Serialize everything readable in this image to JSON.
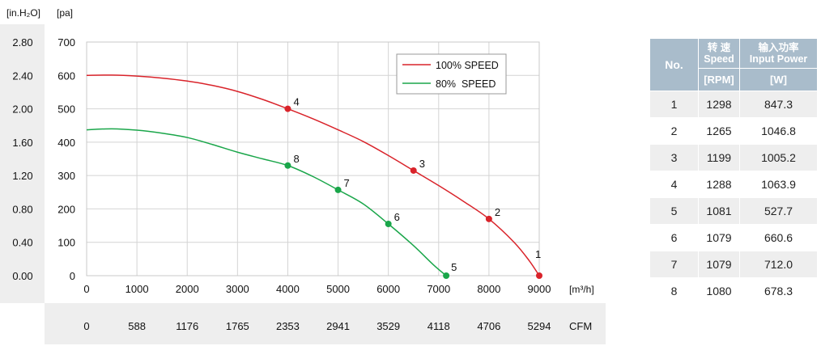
{
  "chart_data": {
    "type": "line",
    "x_unit": "[m³/h]",
    "y_unit": "[pa]",
    "y2_unit": "[in.H₂O]",
    "bottom_unit": "CFM",
    "x_ticks": [
      0,
      1000,
      2000,
      3000,
      4000,
      5000,
      6000,
      7000,
      8000,
      9000
    ],
    "y_ticks": [
      0,
      100,
      200,
      300,
      400,
      500,
      600,
      700
    ],
    "y2_ticks": [
      "0.00",
      "0.40",
      "0.80",
      "1.20",
      "1.60",
      "2.00",
      "2.40",
      "2.80"
    ],
    "cfm_ticks": [
      "0",
      "588",
      "1176",
      "1765",
      "2353",
      "2941",
      "3529",
      "4118",
      "4706",
      "5294"
    ],
    "xlim": [
      0,
      9000
    ],
    "ylim": [
      0,
      700
    ],
    "grid": true,
    "legend_position": "top-right",
    "series": [
      {
        "name": "100% SPEED",
        "color": "#d9232a",
        "curve": [
          [
            0,
            600
          ],
          [
            500,
            601
          ],
          [
            1000,
            598
          ],
          [
            1500,
            592
          ],
          [
            2000,
            583
          ],
          [
            2500,
            570
          ],
          [
            3000,
            552
          ],
          [
            3500,
            528
          ],
          [
            4000,
            500
          ],
          [
            4500,
            470
          ],
          [
            5000,
            437
          ],
          [
            5500,
            402
          ],
          [
            6000,
            360
          ],
          [
            6500,
            315
          ],
          [
            7000,
            270
          ],
          [
            7500,
            222
          ],
          [
            8000,
            170
          ],
          [
            8500,
            100
          ],
          [
            8800,
            45
          ],
          [
            9000,
            0
          ]
        ],
        "points": [
          {
            "label": "4",
            "x": 4000,
            "y": 500
          },
          {
            "label": "3",
            "x": 6500,
            "y": 315
          },
          {
            "label": "2",
            "x": 8000,
            "y": 170
          },
          {
            "label": "1",
            "x": 9000,
            "y": 0
          }
        ]
      },
      {
        "name": "80%  SPEED",
        "color": "#1aa64a",
        "curve": [
          [
            0,
            437
          ],
          [
            500,
            440
          ],
          [
            1000,
            436
          ],
          [
            1500,
            427
          ],
          [
            2000,
            414
          ],
          [
            2500,
            393
          ],
          [
            3000,
            370
          ],
          [
            3500,
            350
          ],
          [
            4000,
            330
          ],
          [
            4500,
            297
          ],
          [
            5000,
            257
          ],
          [
            5500,
            215
          ],
          [
            6000,
            155
          ],
          [
            6500,
            90
          ],
          [
            6900,
            32
          ],
          [
            7150,
            0
          ]
        ],
        "points": [
          {
            "label": "8",
            "x": 4000,
            "y": 330
          },
          {
            "label": "7",
            "x": 5000,
            "y": 257
          },
          {
            "label": "6",
            "x": 6000,
            "y": 155
          },
          {
            "label": "5",
            "x": 7150,
            "y": 0
          }
        ]
      }
    ]
  },
  "table": {
    "no_header": "No.",
    "speed_header_cn": "转 速",
    "speed_header_en": "Speed",
    "power_header_cn": "输入功率",
    "power_header_en": "Input Power",
    "speed_unit": "[RPM]",
    "power_unit": "[W]",
    "rows": [
      {
        "no": "1",
        "speed": "1298",
        "power": "847.3"
      },
      {
        "no": "2",
        "speed": "1265",
        "power": "1046.8"
      },
      {
        "no": "3",
        "speed": "1199",
        "power": "1005.2"
      },
      {
        "no": "4",
        "speed": "1288",
        "power": "1063.9"
      },
      {
        "no": "5",
        "speed": "1081",
        "power": "527.7"
      },
      {
        "no": "6",
        "speed": "1079",
        "power": "660.6"
      },
      {
        "no": "7",
        "speed": "1079",
        "power": "712.0"
      },
      {
        "no": "8",
        "speed": "1080",
        "power": "678.3"
      }
    ]
  }
}
